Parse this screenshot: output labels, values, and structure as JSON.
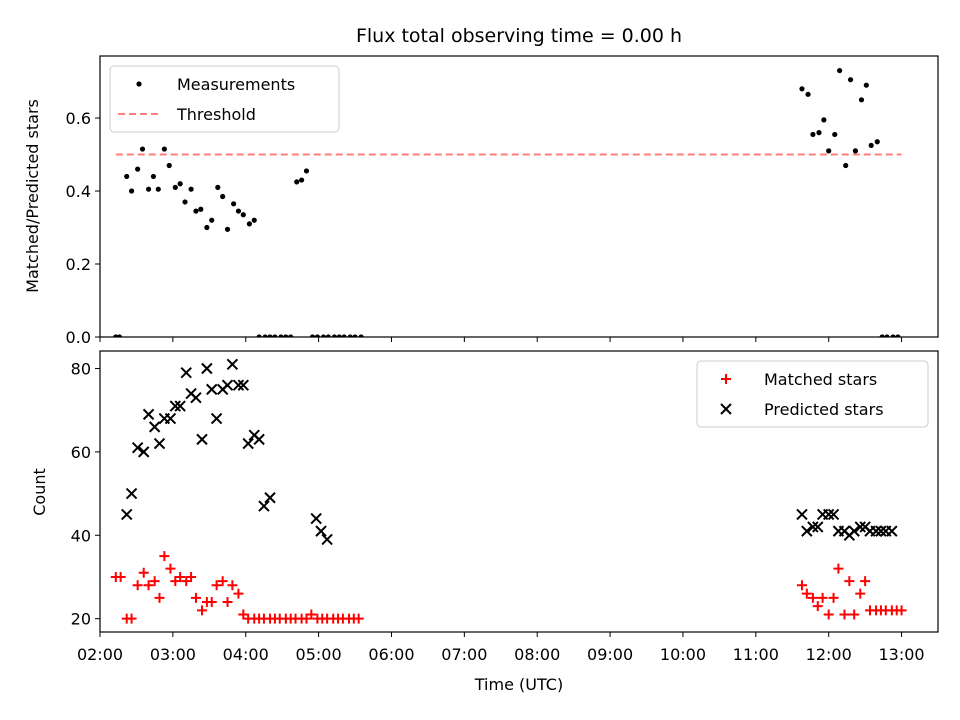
{
  "chart_data": [
    {
      "type": "scatter",
      "title": "Flux total observing time = 0.00 h",
      "xlabel": "",
      "ylabel": "Matched/Predicted stars",
      "xlim": [
        "02:00",
        "13:30"
      ],
      "ylim": [
        0,
        0.77
      ],
      "yticks": [
        0.0,
        0.2,
        0.4,
        0.6
      ],
      "ytick_labels": [
        "0.0",
        "0.2",
        "0.4",
        "0.6"
      ],
      "legend_position": "top-left",
      "series": [
        {
          "name": "Measurements",
          "style": "dot",
          "color": "#000000",
          "x": [
            "02:13",
            "02:16",
            "02:22",
            "02:26",
            "02:31",
            "02:35",
            "02:40",
            "02:44",
            "02:48",
            "02:53",
            "02:57",
            "03:02",
            "03:06",
            "03:10",
            "03:15",
            "03:19",
            "03:23",
            "03:28",
            "03:32",
            "03:37",
            "03:41",
            "03:45",
            "03:50",
            "03:54",
            "03:58",
            "04:03",
            "04:07",
            "04:11",
            "04:16",
            "04:20",
            "04:24",
            "04:29",
            "04:33",
            "04:37",
            "04:42",
            "04:46",
            "04:50",
            "04:55",
            "04:59",
            "05:04",
            "05:08",
            "05:13",
            "05:17",
            "05:21",
            "05:26",
            "05:30",
            "05:35",
            "11:38",
            "11:43",
            "11:47",
            "11:52",
            "11:56",
            "12:00",
            "12:05",
            "12:09",
            "12:14",
            "12:18",
            "12:22",
            "12:27",
            "12:31",
            "12:35",
            "12:40",
            "12:44",
            "12:48",
            "12:53",
            "12:57"
          ],
          "y": [
            0.0,
            0.0,
            0.44,
            0.4,
            0.46,
            0.515,
            0.405,
            0.44,
            0.405,
            0.515,
            0.47,
            0.41,
            0.42,
            0.37,
            0.405,
            0.345,
            0.35,
            0.3,
            0.32,
            0.41,
            0.385,
            0.295,
            0.365,
            0.345,
            0.335,
            0.31,
            0.32,
            0.0,
            0.0,
            0.0,
            0.0,
            0.0,
            0.0,
            0.0,
            0.425,
            0.43,
            0.455,
            0.0,
            0.0,
            0.0,
            0.0,
            0.0,
            0.0,
            0.0,
            0.0,
            0.0,
            0.0,
            0.68,
            0.665,
            0.555,
            0.56,
            0.595,
            0.51,
            0.555,
            0.73,
            0.47,
            0.705,
            0.51,
            0.65,
            0.69,
            0.525,
            0.535,
            0.0,
            0.0,
            0.0,
            0.0
          ]
        },
        {
          "name": "Threshold",
          "style": "dashed-line",
          "color": "#ff7f7f",
          "x": [
            "02:13",
            "13:00"
          ],
          "y": [
            0.5,
            0.5
          ]
        }
      ]
    },
    {
      "type": "scatter",
      "title": "",
      "xlabel": "Time (UTC)",
      "ylabel": "Count",
      "xlim": [
        "02:00",
        "13:30"
      ],
      "ylim": [
        16.8,
        84.2
      ],
      "yticks": [
        20,
        40,
        60,
        80
      ],
      "ytick_labels": [
        "20",
        "40",
        "60",
        "80"
      ],
      "xticks": [
        "02:00",
        "03:00",
        "04:00",
        "05:00",
        "06:00",
        "07:00",
        "08:00",
        "09:00",
        "10:00",
        "11:00",
        "12:00",
        "13:00"
      ],
      "legend_position": "top-right",
      "series": [
        {
          "name": "Matched stars",
          "style": "plus",
          "color": "#ff0000",
          "x": [
            "02:13",
            "02:17",
            "02:22",
            "02:26",
            "02:31",
            "02:36",
            "02:40",
            "02:45",
            "02:49",
            "02:53",
            "02:58",
            "03:02",
            "03:06",
            "03:11",
            "03:15",
            "03:19",
            "03:24",
            "03:28",
            "03:32",
            "03:36",
            "03:41",
            "03:45",
            "03:49",
            "03:54",
            "03:58",
            "04:02",
            "04:07",
            "04:11",
            "04:15",
            "04:20",
            "04:24",
            "04:28",
            "04:33",
            "04:37",
            "04:41",
            "04:46",
            "04:50",
            "04:54",
            "04:59",
            "05:03",
            "05:07",
            "05:12",
            "05:16",
            "05:20",
            "05:25",
            "05:29",
            "05:33",
            "11:38",
            "11:42",
            "11:47",
            "11:51",
            "11:55",
            "12:00",
            "12:04",
            "12:08",
            "12:13",
            "12:17",
            "12:21",
            "12:26",
            "12:30",
            "12:34",
            "12:39",
            "12:43",
            "12:47",
            "12:52",
            "12:56",
            "13:00"
          ],
          "y": [
            30,
            30,
            20,
            20,
            28,
            31,
            28,
            29,
            25,
            35,
            32,
            29,
            30,
            29,
            30,
            25,
            22,
            24,
            24,
            28,
            29,
            24,
            28,
            26,
            21,
            20,
            20,
            20,
            20,
            20,
            20,
            20,
            20,
            20,
            20,
            20,
            20,
            21,
            20,
            20,
            20,
            20,
            20,
            20,
            20,
            20,
            20,
            28,
            26,
            25,
            23,
            25,
            21,
            25,
            32,
            21,
            29,
            21,
            26,
            29,
            22,
            22,
            22,
            22,
            22,
            22,
            22
          ]
        },
        {
          "name": "Predicted stars",
          "style": "x",
          "color": "#000000",
          "x": [
            "02:22",
            "02:26",
            "02:31",
            "02:36",
            "02:40",
            "02:45",
            "02:49",
            "02:53",
            "02:58",
            "03:02",
            "03:06",
            "03:11",
            "03:15",
            "03:19",
            "03:24",
            "03:28",
            "03:32",
            "03:36",
            "03:41",
            "03:45",
            "03:49",
            "03:54",
            "03:58",
            "04:02",
            "04:07",
            "04:11",
            "04:15",
            "04:20",
            "04:58",
            "05:02",
            "05:07",
            "11:38",
            "11:42",
            "11:47",
            "11:51",
            "11:55",
            "12:00",
            "12:04",
            "12:08",
            "12:13",
            "12:17",
            "12:21",
            "12:26",
            "12:30",
            "12:34",
            "12:39",
            "12:43",
            "12:47",
            "12:52"
          ],
          "y": [
            45,
            50,
            61,
            60,
            69,
            66,
            62,
            68,
            68,
            71,
            71,
            79,
            74,
            73,
            63,
            80,
            75,
            68,
            75,
            76,
            81,
            76,
            76,
            62,
            64,
            63,
            47,
            49,
            44,
            41,
            39,
            45,
            41,
            42,
            42,
            45,
            45,
            45,
            41,
            41,
            40,
            41,
            42,
            42,
            41,
            41,
            41,
            41,
            41
          ]
        }
      ]
    }
  ]
}
